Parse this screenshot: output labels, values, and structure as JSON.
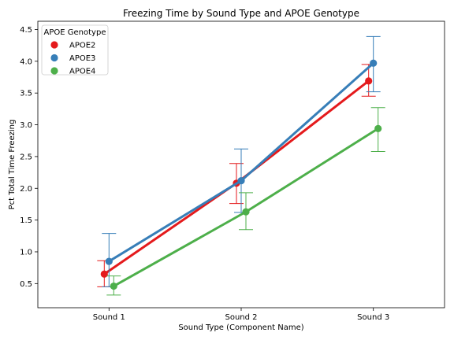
{
  "chart_data": {
    "type": "line",
    "title": "Freezing Time by Sound Type and APOE Genotype",
    "xlabel": "Sound Type (Component Name)",
    "ylabel": "Pct Total Time Freezing",
    "categories": [
      "Sound 1",
      "Sound 2",
      "Sound 3"
    ],
    "ylim": [
      0.12,
      4.63
    ],
    "yticks": [
      "0.5",
      "1.0",
      "1.5",
      "2.0",
      "2.5",
      "3.0",
      "3.5",
      "4.0",
      "4.5"
    ],
    "grid": false,
    "legend": {
      "title": "APOE Genotype",
      "placement": "top-left"
    },
    "series": [
      {
        "name": "APOE2",
        "color": "#e41a1c",
        "values": [
          0.65,
          2.08,
          3.69
        ],
        "err_low": [
          0.45,
          1.76,
          3.45
        ],
        "err_high": [
          0.86,
          2.39,
          3.95
        ]
      },
      {
        "name": "APOE3",
        "color": "#377eb8",
        "values": [
          0.85,
          2.12,
          3.97
        ],
        "err_low": [
          0.45,
          1.62,
          3.52
        ],
        "err_high": [
          1.29,
          2.62,
          4.39
        ]
      },
      {
        "name": "APOE4",
        "color": "#4daf4a",
        "values": [
          0.46,
          1.63,
          2.94
        ],
        "err_low": [
          0.32,
          1.35,
          2.58
        ],
        "err_high": [
          0.62,
          1.93,
          3.27
        ]
      }
    ]
  }
}
